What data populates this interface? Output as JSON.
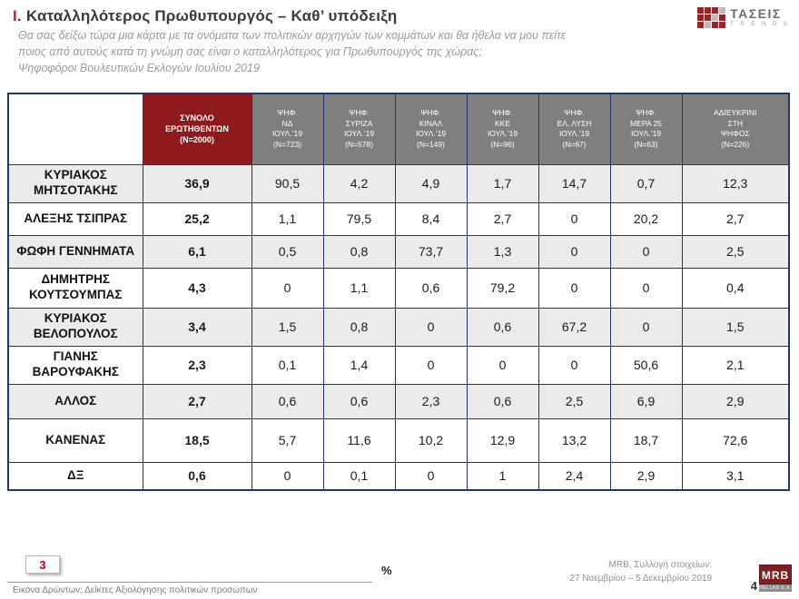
{
  "header": {
    "title_prefix": "I.",
    "title": "Καταλληλότερος  Πρωθυπουργός – Καθ’ υπόδειξη",
    "subtitle_line1": "Θα σας δείξω τώρα μια κάρτα με τα ονόματα των πολιτικών αρχηγών των κομμάτων και θα ήθελα να μου πείτε",
    "subtitle_line2": "ποιος από αυτούς κατά τη γνώμη σας είναι ο καταλληλότερος για Πρωθυπουργός της χώρας;",
    "subtitle_line3": "Ψηφοφόροι Βουλευτικών Εκλογών Ιουλίου 2019"
  },
  "logo": {
    "name": "ΤΑΣΕΙΣ",
    "sub": "T R E N D S"
  },
  "table": {
    "columns": [
      {
        "type": "total",
        "lines": [
          "ΣΥΝΟΛΟ",
          "ΕΡΩΤΗΘΕΝΤΩΝ",
          "(Ν=2000)"
        ]
      },
      {
        "lines": [
          "ΨΗΦ.",
          "ΝΔ",
          "ΙΟΥΛ.’19",
          "(Ν=723)"
        ]
      },
      {
        "lines": [
          "ΨΗΦ.",
          "ΣΥΡΙΖΑ",
          "ΙΟΥΛ.’19",
          "(Ν=578)"
        ]
      },
      {
        "lines": [
          "ΨΗΦ.",
          "ΚΙΝΑΛ",
          "ΙΟΥΛ.’19",
          "(Ν=149)"
        ]
      },
      {
        "lines": [
          "ΨΗΦ.",
          "ΚΚΕ",
          "ΙΟΥΛ.’19",
          "(Ν=96)"
        ]
      },
      {
        "lines": [
          "ΨΗΦ.",
          "ΕΛ. ΛΥΣΗ",
          "ΙΟΥΛ.’19",
          "(Ν=67)"
        ]
      },
      {
        "lines": [
          "ΨΗΦ.",
          "ΜΕΡΑ 25",
          "ΙΟΥΛ.’19",
          "(Ν=63)"
        ]
      },
      {
        "lines": [
          "ΑΔΙΕΥΚΡΙΝΙ",
          "ΣΤΗ",
          "ΨΗΦΟΣ",
          "(Ν=226)"
        ]
      }
    ],
    "rows": [
      {
        "label": "ΚΥΡΙΑΚΟΣ ΜΗΤΣΟΤΑΚΗΣ",
        "values": [
          "36,9",
          "90,5",
          "4,2",
          "4,9",
          "1,7",
          "14,7",
          "0,7",
          "12,3"
        ]
      },
      {
        "label": "ΑΛΕΞΗΣ ΤΣΙΠΡΑΣ",
        "values": [
          "25,2",
          "1,1",
          "79,5",
          "8,4",
          "2,7",
          "0",
          "20,2",
          "2,7"
        ]
      },
      {
        "label": "ΦΩΦΗ ΓΕΝΝΗΜΑΤΑ",
        "values": [
          "6,1",
          "0,5",
          "0,8",
          "73,7",
          "1,3",
          "0",
          "0",
          "2,5"
        ]
      },
      {
        "label": "ΔΗΜΗΤΡΗΣ ΚΟΥΤΣΟΥΜΠΑΣ",
        "values": [
          "4,3",
          "0",
          "1,1",
          "0,6",
          "79,2",
          "0",
          "0",
          "0,4"
        ]
      },
      {
        "label": "ΚΥΡΙΑΚΟΣ ΒΕΛΟΠΟΥΛΟΣ",
        "values": [
          "3,4",
          "1,5",
          "0,8",
          "0",
          "0,6",
          "67,2",
          "0",
          "1,5"
        ]
      },
      {
        "label": "ΓΙΑΝΗΣ ΒΑΡΟΥΦΑΚΗΣ",
        "values": [
          "2,3",
          "0,1",
          "1,4",
          "0",
          "0",
          "0",
          "50,6",
          "2,1"
        ]
      },
      {
        "label": "ΑΛΛΟΣ",
        "values": [
          "2,7",
          "0,6",
          "0,6",
          "2,3",
          "0,6",
          "2,5",
          "6,9",
          "2,9"
        ]
      },
      {
        "label": "ΚΑΝΕΝΑΣ",
        "values": [
          "18,5",
          "5,7",
          "11,6",
          "10,2",
          "12,9",
          "13,2",
          "18,7",
          "72,6"
        ]
      },
      {
        "label": "ΔΞ",
        "values": [
          "0,6",
          "0",
          "0,1",
          "0",
          "1",
          "2,4",
          "2,9",
          "3,1"
        ]
      }
    ]
  },
  "footer": {
    "page_box": "3",
    "caption": "Εικόνα Δρώντων: Δείκτες Αξιολόγησης πολιτικών προσώπων",
    "percent": "%",
    "source_line1": "MRB, Συλλογή στοιχείων:",
    "source_line2": "27 Νοεμβρίου – 5 Δεκεμβρίου 2019",
    "page_number": "4",
    "mrb_logo": "MRB",
    "mrb_sub": "HELLAS S.A."
  },
  "colors": {
    "accent_red": "#8e1a1e",
    "header_gray": "#7f7f7f",
    "border_navy": "#1f3864",
    "shaded_row": "#ebebeb"
  }
}
